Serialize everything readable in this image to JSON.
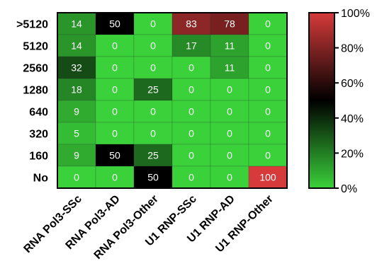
{
  "chart_data": {
    "type": "heatmap",
    "rows": [
      ">5120",
      "5120",
      "2560",
      "1280",
      "640",
      "320",
      "160",
      "No"
    ],
    "columns": [
      "RNA Pol3-SSc",
      "RNA Pol3-AD",
      "RNA Pol3-Other",
      "U1 RNP-SSc",
      "U1 RNP-AD",
      "U1 RNP-Other"
    ],
    "values": [
      [
        14,
        50,
        0,
        83,
        78,
        0
      ],
      [
        14,
        0,
        0,
        17,
        11,
        0
      ],
      [
        32,
        0,
        0,
        0,
        11,
        0
      ],
      [
        18,
        0,
        25,
        0,
        0,
        0
      ],
      [
        9,
        0,
        0,
        0,
        0,
        0
      ],
      [
        5,
        0,
        0,
        0,
        0,
        0
      ],
      [
        9,
        50,
        25,
        0,
        0,
        0
      ],
      [
        0,
        0,
        50,
        0,
        0,
        100
      ]
    ],
    "colorbar": {
      "ticks": [
        "0%",
        "20%",
        "40%",
        "60%",
        "80%",
        "100%"
      ],
      "range": [
        0,
        100
      ],
      "colors": {
        "low": "#3ad13a",
        "mid": "#000000",
        "high": "#d63a3a"
      }
    },
    "title": "",
    "xlabel": "",
    "ylabel": ""
  }
}
